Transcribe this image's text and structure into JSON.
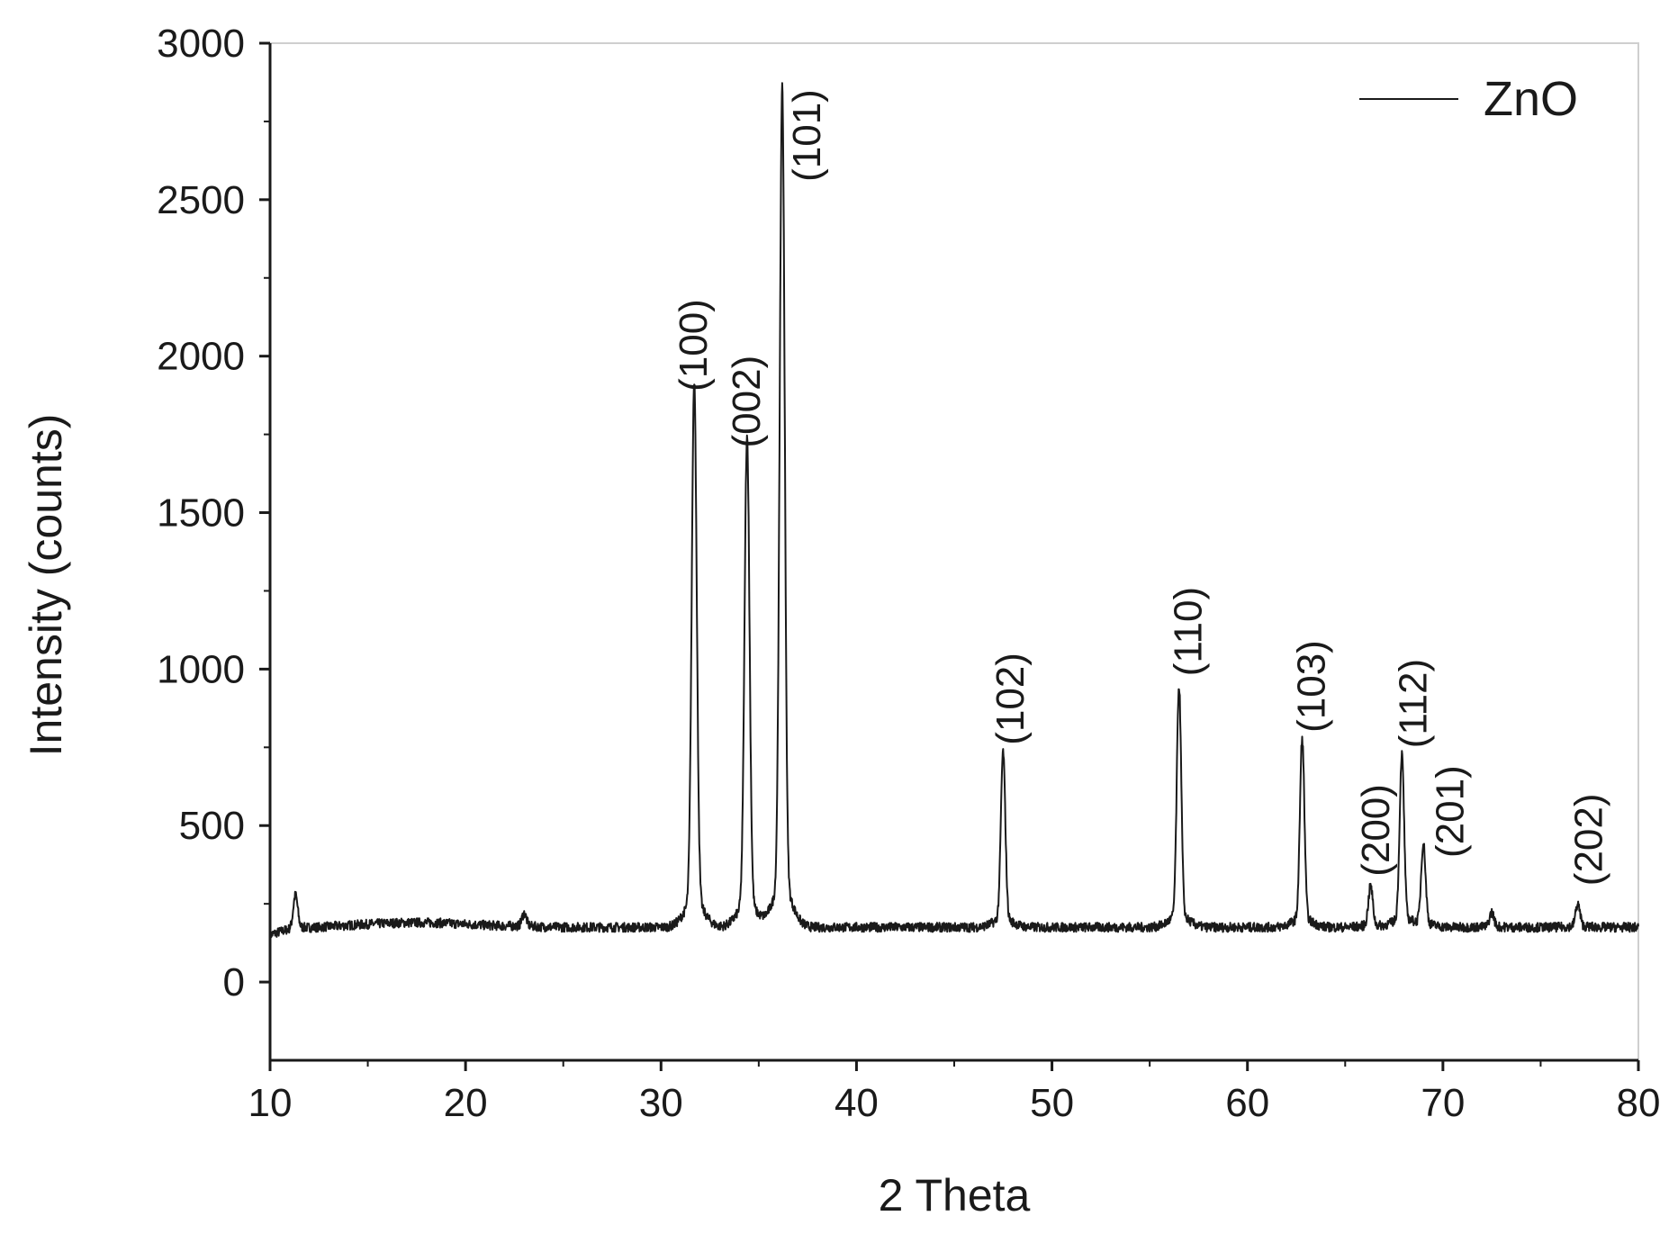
{
  "chart_data": {
    "type": "line",
    "xlabel": "2 Theta",
    "ylabel": "Intensity (counts)",
    "xlim": [
      10,
      80
    ],
    "ylim": [
      -250,
      3000
    ],
    "x_ticks": [
      10,
      20,
      30,
      40,
      50,
      60,
      70,
      80
    ],
    "y_ticks": [
      0,
      500,
      1000,
      1500,
      2000,
      2500,
      3000
    ],
    "grid": false,
    "legend_position": "top-right",
    "series": [
      {
        "name": "ZnO",
        "color": "#1a1a1a",
        "baseline": 175,
        "peaks": [
          {
            "x": 11.3,
            "y": 280
          },
          {
            "x": 23.0,
            "y": 215
          },
          {
            "x": 31.7,
            "y": 1840
          },
          {
            "x": 34.4,
            "y": 1670
          },
          {
            "x": 36.2,
            "y": 2730
          },
          {
            "x": 47.5,
            "y": 710
          },
          {
            "x": 56.5,
            "y": 910
          },
          {
            "x": 62.8,
            "y": 750
          },
          {
            "x": 66.3,
            "y": 300
          },
          {
            "x": 67.9,
            "y": 700
          },
          {
            "x": 69.0,
            "y": 430
          },
          {
            "x": 72.5,
            "y": 220
          },
          {
            "x": 76.9,
            "y": 245
          }
        ]
      }
    ],
    "annotations": [
      {
        "text": "(100)",
        "x": 31.7,
        "y": 1870
      },
      {
        "text": "(002)",
        "x": 34.4,
        "y": 1690
      },
      {
        "text": "(101)",
        "x": 37.5,
        "y": 2540
      },
      {
        "text": "(102)",
        "x": 47.9,
        "y": 740
      },
      {
        "text": "(110)",
        "x": 57.0,
        "y": 960
      },
      {
        "text": "(103)",
        "x": 63.3,
        "y": 780
      },
      {
        "text": "(200)",
        "x": 66.6,
        "y": 320
      },
      {
        "text": "(112)",
        "x": 68.5,
        "y": 730
      },
      {
        "text": "(201)",
        "x": 70.4,
        "y": 380
      },
      {
        "text": "(202)",
        "x": 77.5,
        "y": 290
      }
    ]
  }
}
